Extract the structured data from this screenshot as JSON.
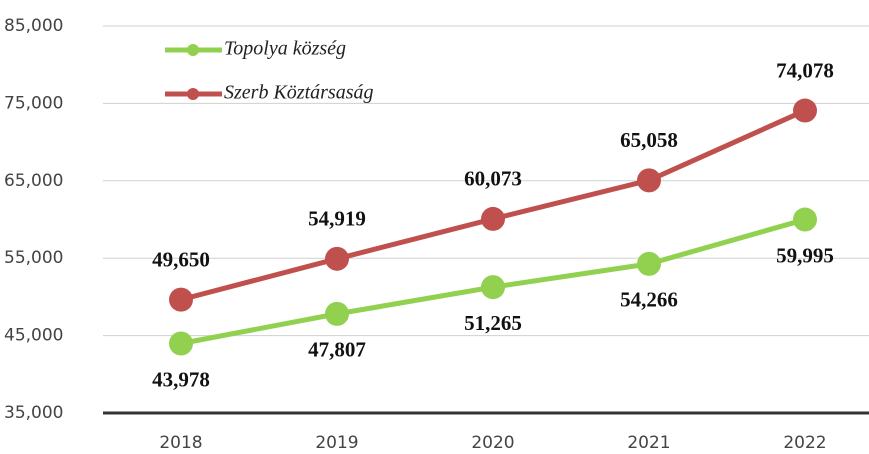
{
  "chart_data": {
    "type": "line",
    "categories": [
      "2018",
      "2019",
      "2020",
      "2021",
      "2022"
    ],
    "series": [
      {
        "name": "Topolya község",
        "color": "#92d050",
        "values": [
          43978,
          47807,
          51265,
          54266,
          59995
        ],
        "value_labels": [
          "43,978",
          "47,807",
          "51,265",
          "54,266",
          "59,995"
        ]
      },
      {
        "name": "Szerb Köztársaság",
        "color": "#c0504d",
        "values": [
          49650,
          54919,
          60073,
          65058,
          74078
        ],
        "value_labels": [
          "49,650",
          "54,919",
          "60,073",
          "65,058",
          "74,078"
        ]
      }
    ],
    "ylim": [
      35000,
      85000
    ],
    "yticks": [
      {
        "value": 35000,
        "label": "35,000"
      },
      {
        "value": 45000,
        "label": "45,000"
      },
      {
        "value": 55000,
        "label": "55,000"
      },
      {
        "value": 65000,
        "label": "65,000"
      },
      {
        "value": 75000,
        "label": "75,000"
      },
      {
        "value": 85000,
        "label": "85,000"
      }
    ],
    "grid": true,
    "legend": "top-left"
  }
}
